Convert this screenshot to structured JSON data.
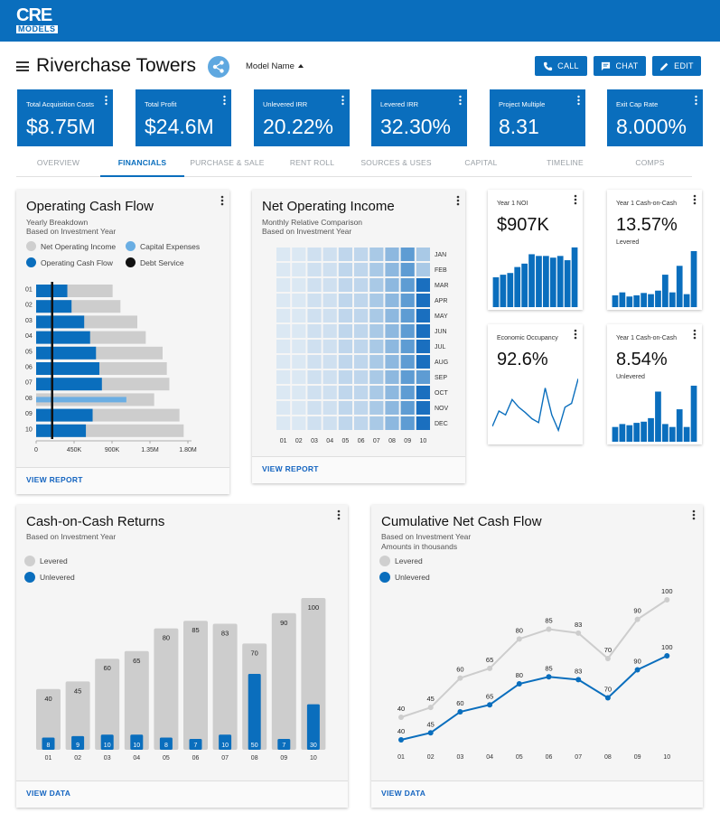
{
  "brand": {
    "logo_line1": "CRE",
    "logo_line2": "MODELS",
    "primary": "#0a6ebd",
    "light": "#5fa8e0",
    "grey": "#cfcfcf"
  },
  "header": {
    "title": "Riverchase Towers",
    "model_name": "Model Name",
    "call": "CALL",
    "chat": "CHAT",
    "edit": "EDIT"
  },
  "kpis": [
    {
      "label": "Total Acquisition Costs",
      "value": "$8.75M"
    },
    {
      "label": "Total Profit",
      "value": "$24.6M"
    },
    {
      "label": "Unlevered IRR",
      "value": "20.22%"
    },
    {
      "label": "Levered IRR",
      "value": "32.30%"
    },
    {
      "label": "Project Multiple",
      "value": "8.31"
    },
    {
      "label": "Exit Cap Rate",
      "value": "8.000%"
    }
  ],
  "tabs": [
    "OVERVIEW",
    "FINANCIALS",
    "PURCHASE & SALE",
    "RENT ROLL",
    "SOURCES & USES",
    "CAPITAL",
    "TIMELINE",
    "COMPS"
  ],
  "active_tab": 1,
  "ocf": {
    "title": "Operating Cash Flow",
    "sub1": "Yearly Breakdown",
    "sub2": "Based on Investment Year",
    "legend": [
      "Net Operating Income",
      "Capital Expenses",
      "Operating Cash Flow",
      "Debt Service"
    ],
    "link": "VIEW REPORT"
  },
  "noi": {
    "title": "Net Operating Income",
    "sub1": "Monthly Relative Comparison",
    "sub2": "Based on Investment Year",
    "link": "VIEW REPORT"
  },
  "minis": {
    "noi": {
      "label": "Year 1 NOI",
      "value": "$907K"
    },
    "coc_levered": {
      "label": "Year 1 Cash-on-Cash",
      "value": "13.57%",
      "sub": "Levered"
    },
    "occupancy": {
      "label": "Economic Occupancy",
      "value": "92.6%"
    },
    "coc_unlevered": {
      "label": "Year 1 Cash-on-Cash",
      "value": "8.54%",
      "sub": "Unlevered"
    }
  },
  "coc": {
    "title": "Cash-on-Cash Returns",
    "sub1": "Based on Investment Year",
    "legend": [
      "Levered",
      "Unlevered"
    ],
    "link": "VIEW DATA"
  },
  "cncf": {
    "title": "Cumulative Net Cash Flow",
    "sub1": "Based on Investment Year",
    "sub2": "Amounts in thousands",
    "legend": [
      "Levered",
      "Unlevered"
    ],
    "link": "VIEW DATA"
  },
  "chart_data": [
    {
      "type": "bar",
      "name": "operating-cash-flow",
      "orientation": "horizontal",
      "categories": [
        "01",
        "02",
        "03",
        "04",
        "05",
        "06",
        "07",
        "08",
        "09",
        "10"
      ],
      "xticks": [
        "0",
        "450K",
        "900K",
        "1.35M",
        "1.80M"
      ],
      "xlim": [
        0,
        1800000
      ],
      "series": [
        {
          "name": "Net Operating Income",
          "values": [
            907000,
            1000000,
            1200000,
            1300000,
            1500000,
            1550000,
            1580000,
            1400000,
            1700000,
            1750000
          ]
        },
        {
          "name": "Operating Cash Flow",
          "values": [
            370000,
            420000,
            570000,
            640000,
            710000,
            750000,
            780000,
            0,
            670000,
            590000
          ]
        },
        {
          "name": "Capital Expenses",
          "values": [
            0,
            0,
            0,
            0,
            0,
            0,
            0,
            1070000,
            0,
            0
          ]
        },
        {
          "name": "Debt Service",
          "values": [
            190000,
            190000,
            190000,
            190000,
            190000,
            190000,
            190000,
            190000,
            190000,
            190000
          ]
        }
      ]
    },
    {
      "type": "heatmap",
      "name": "net-operating-income",
      "x": [
        "01",
        "02",
        "03",
        "04",
        "05",
        "06",
        "07",
        "08",
        "09",
        "10"
      ],
      "y": [
        "JAN",
        "FEB",
        "MAR",
        "APR",
        "MAY",
        "JUN",
        "JUL",
        "AUG",
        "SEP",
        "OCT",
        "NOV",
        "DEC"
      ],
      "values": [
        [
          1,
          1,
          2,
          2,
          3,
          3,
          4,
          5,
          6,
          4
        ],
        [
          1,
          1,
          2,
          2,
          3,
          3,
          4,
          5,
          6,
          4
        ],
        [
          1,
          1,
          2,
          2,
          3,
          3,
          4,
          5,
          6,
          7
        ],
        [
          1,
          1,
          2,
          2,
          3,
          3,
          4,
          5,
          6,
          7
        ],
        [
          1,
          1,
          2,
          2,
          3,
          3,
          4,
          5,
          6,
          7
        ],
        [
          1,
          1,
          2,
          2,
          3,
          3,
          4,
          5,
          6,
          7
        ],
        [
          1,
          1,
          2,
          2,
          3,
          3,
          4,
          5,
          6,
          7
        ],
        [
          1,
          1,
          2,
          2,
          3,
          3,
          4,
          5,
          6,
          7
        ],
        [
          1,
          1,
          2,
          2,
          3,
          3,
          4,
          5,
          6,
          6
        ],
        [
          1,
          1,
          2,
          2,
          3,
          3,
          4,
          5,
          6,
          7
        ],
        [
          1,
          1,
          2,
          2,
          3,
          3,
          4,
          5,
          6,
          7
        ],
        [
          1,
          1,
          2,
          2,
          3,
          3,
          4,
          5,
          6,
          7
        ]
      ]
    },
    {
      "type": "bar",
      "name": "year1-noi-mini",
      "values": [
        35,
        38,
        40,
        47,
        51,
        62,
        60,
        60,
        58,
        60,
        55,
        70
      ]
    },
    {
      "type": "bar",
      "name": "coc-levered-mini",
      "values": [
        20,
        25,
        18,
        20,
        24,
        22,
        28,
        55,
        25,
        70,
        22,
        95
      ]
    },
    {
      "type": "line",
      "name": "economic-occupancy-mini",
      "values": [
        20,
        40,
        35,
        55,
        45,
        38,
        30,
        25,
        70,
        35,
        15,
        45,
        50,
        82
      ]
    },
    {
      "type": "bar",
      "name": "coc-unlevered-mini",
      "values": [
        25,
        30,
        28,
        32,
        34,
        40,
        85,
        30,
        25,
        55,
        25,
        95
      ]
    },
    {
      "type": "bar",
      "name": "cash-on-cash-returns",
      "categories": [
        "01",
        "02",
        "03",
        "04",
        "05",
        "06",
        "07",
        "08",
        "09",
        "10"
      ],
      "series": [
        {
          "name": "Levered",
          "values": [
            40,
            45,
            60,
            65,
            80,
            85,
            83,
            70,
            90,
            100
          ]
        },
        {
          "name": "Unlevered",
          "values": [
            8,
            9,
            10,
            10,
            8,
            7,
            10,
            50,
            7,
            30
          ]
        }
      ],
      "ylim": [
        0,
        100
      ]
    },
    {
      "type": "line",
      "name": "cumulative-net-cash-flow",
      "categories": [
        "01",
        "02",
        "03",
        "04",
        "05",
        "06",
        "07",
        "08",
        "09",
        "10"
      ],
      "series": [
        {
          "name": "Levered",
          "values": [
            40,
            45,
            60,
            65,
            80,
            85,
            83,
            70,
            90,
            100
          ]
        },
        {
          "name": "Unlevered",
          "values": [
            40,
            45,
            60,
            65,
            80,
            85,
            83,
            70,
            90,
            100
          ]
        }
      ],
      "ylim": [
        0,
        100
      ]
    }
  ]
}
